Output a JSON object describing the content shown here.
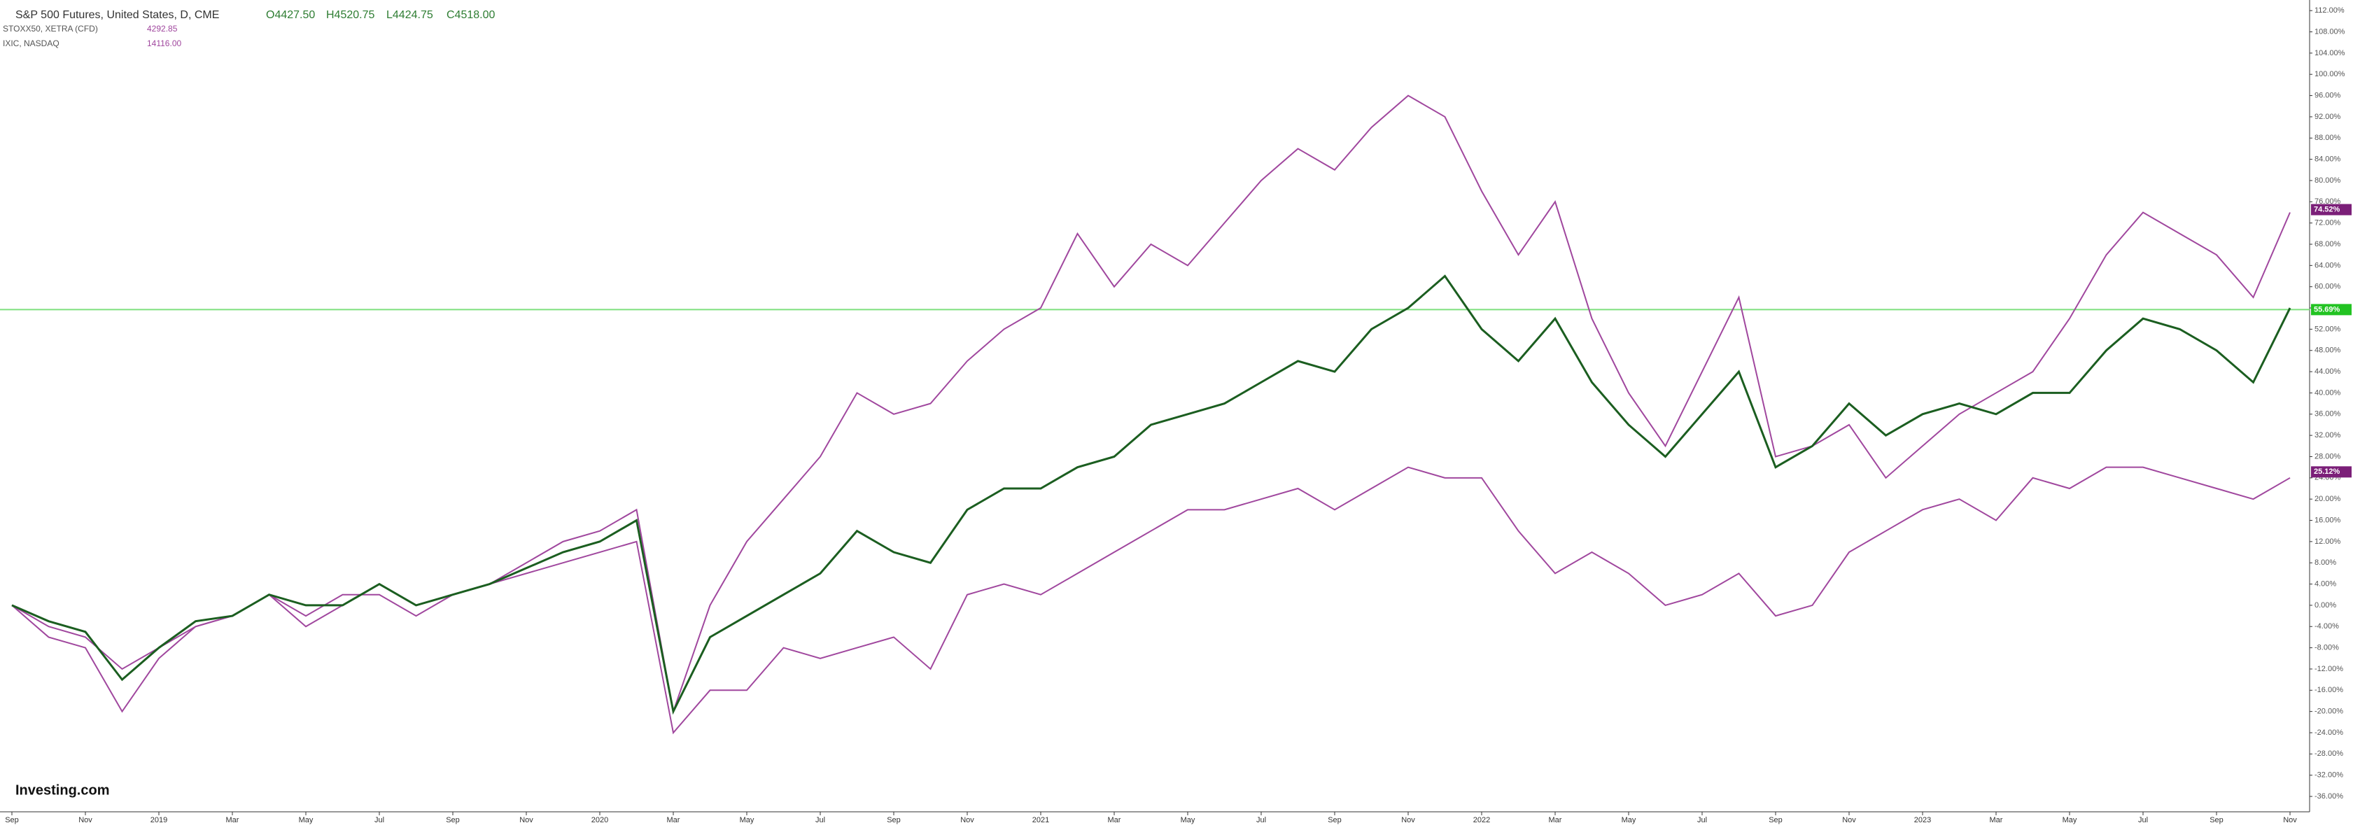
{
  "chart_data": {
    "type": "line",
    "header": {
      "main": "S&P 500 Futures, United States, D, CME",
      "ohlc": [
        "O4427.50",
        "H4520.75",
        "L4424.75",
        "C4518.00"
      ]
    },
    "logo": "Investing.com",
    "categories": [
      "Sep",
      null,
      "Nov",
      null,
      "2019",
      null,
      "Mar",
      null,
      "May",
      null,
      "Jul",
      null,
      "Sep",
      null,
      "Nov",
      null,
      "2020",
      null,
      "Mar",
      null,
      "May",
      null,
      "Jul",
      null,
      "Sep",
      null,
      "Nov",
      null,
      "2021",
      null,
      "Mar",
      null,
      "May",
      null,
      "Jul",
      null,
      "Sep",
      null,
      "Nov",
      null,
      "2022",
      null,
      "Mar",
      null,
      "May",
      null,
      "Jul",
      null,
      "Sep",
      null,
      "Nov",
      null,
      "2023",
      null,
      "Mar",
      null,
      "May",
      null,
      "Jul",
      null,
      "Sep",
      null,
      "Nov"
    ],
    "series": [
      {
        "name": "STOXX50, XETRA (CFD)",
        "quote": "4292.85",
        "color": "#a0479e",
        "last_label": {
          "value": 25.12,
          "label": "25.12%"
        },
        "values": [
          0,
          -4,
          -6,
          -12,
          -8,
          -4,
          -2,
          2,
          -2,
          2,
          2,
          -2,
          2,
          4,
          6,
          8,
          10,
          12,
          -24,
          -16,
          -16,
          -8,
          -10,
          -8,
          -6,
          -12,
          2,
          4,
          2,
          6,
          10,
          14,
          18,
          18,
          20,
          22,
          18,
          22,
          26,
          24,
          24,
          14,
          6,
          10,
          6,
          0,
          2,
          6,
          -2,
          0,
          10,
          14,
          18,
          20,
          16,
          24,
          22,
          26,
          26,
          24,
          22,
          20,
          24
        ]
      },
      {
        "name": "IXIC, NASDAQ",
        "quote": "14116.00",
        "color": "#a0479e",
        "last_label": {
          "value": 74.52,
          "label": "74.52%"
        },
        "values": [
          0,
          -6,
          -8,
          -20,
          -10,
          -4,
          -2,
          2,
          -4,
          0,
          4,
          0,
          2,
          4,
          8,
          12,
          14,
          18,
          -20,
          0,
          12,
          20,
          28,
          40,
          36,
          38,
          46,
          52,
          56,
          70,
          60,
          68,
          64,
          72,
          80,
          86,
          82,
          90,
          96,
          92,
          78,
          66,
          76,
          54,
          40,
          30,
          44,
          58,
          28,
          30,
          34,
          24,
          30,
          36,
          40,
          44,
          54,
          66,
          74,
          70,
          66,
          58,
          74
        ]
      },
      {
        "name": "S&P 500 Futures",
        "color": "#1b5e20",
        "values": [
          0,
          -3,
          -5,
          -14,
          -8,
          -3,
          -2,
          2,
          0,
          0,
          4,
          0,
          2,
          4,
          7,
          10,
          12,
          16,
          -20,
          -6,
          -2,
          2,
          6,
          14,
          10,
          8,
          18,
          22,
          22,
          26,
          28,
          34,
          36,
          38,
          42,
          46,
          44,
          52,
          56,
          62,
          52,
          46,
          54,
          42,
          34,
          28,
          36,
          44,
          26,
          30,
          38,
          32,
          36,
          38,
          36,
          40,
          40,
          48,
          54,
          52,
          48,
          42,
          56
        ]
      }
    ],
    "reference_line": {
      "value": 55.69,
      "label": "55.69%",
      "color": "#7ee07e"
    },
    "ylim": [
      -38.5,
      114
    ],
    "yticks": [
      {
        "value": -36,
        "label": "-36.00%"
      },
      {
        "value": -32,
        "label": "-32.00%"
      },
      {
        "value": -28,
        "label": "-28.00%"
      },
      {
        "value": -24,
        "label": "-24.00%"
      },
      {
        "value": -20,
        "label": "-20.00%"
      },
      {
        "value": -16,
        "label": "-16.00%"
      },
      {
        "value": -12,
        "label": "-12.00%"
      },
      {
        "value": -8,
        "label": "-8.00%"
      },
      {
        "value": -4,
        "label": "-4.00%"
      },
      {
        "value": 0,
        "label": "0.00%"
      },
      {
        "value": 4,
        "label": "4.00%"
      },
      {
        "value": 8,
        "label": "8.00%"
      },
      {
        "value": 12,
        "label": "12.00%"
      },
      {
        "value": 16,
        "label": "16.00%"
      },
      {
        "value": 20,
        "label": "20.00%"
      },
      {
        "value": 24,
        "label": "24.00%"
      },
      {
        "value": 28,
        "label": "28.00%"
      },
      {
        "value": 32,
        "label": "32.00%"
      },
      {
        "value": 36,
        "label": "36.00%"
      },
      {
        "value": 40,
        "label": "40.00%"
      },
      {
        "value": 44,
        "label": "44.00%"
      },
      {
        "value": 48,
        "label": "48.00%"
      },
      {
        "value": 52,
        "label": "52.00%"
      },
      {
        "value": 56,
        "label": "56.00%"
      },
      {
        "value": 60,
        "label": "60.00%"
      },
      {
        "value": 64,
        "label": "64.00%"
      },
      {
        "value": 68,
        "label": "68.00%"
      },
      {
        "value": 72,
        "label": "72.00%"
      },
      {
        "value": 76,
        "label": "76.00%"
      },
      {
        "value": 80,
        "label": "80.00%"
      },
      {
        "value": 84,
        "label": "84.00%"
      },
      {
        "value": 88,
        "label": "88.00%"
      },
      {
        "value": 92,
        "label": "92.00%"
      },
      {
        "value": 96,
        "label": "96.00%"
      },
      {
        "value": 100,
        "label": "100.00%"
      },
      {
        "value": 104,
        "label": "104.00%"
      },
      {
        "value": 108,
        "label": "108.00%"
      },
      {
        "value": 112,
        "label": "112.00%"
      }
    ]
  }
}
